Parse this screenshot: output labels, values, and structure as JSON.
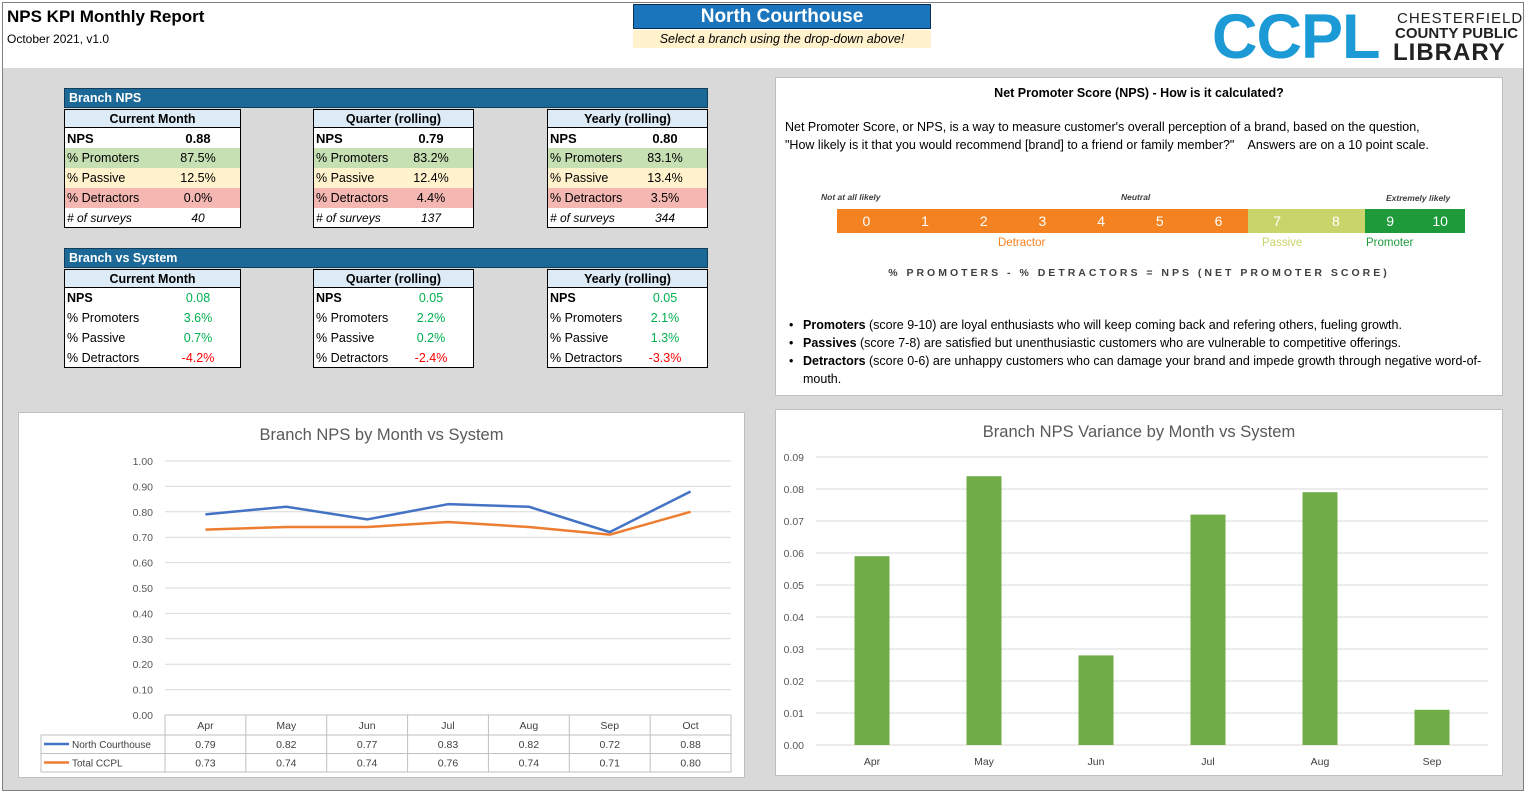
{
  "header": {
    "title": "NPS KPI Monthly Report",
    "subtitle": "October 2021, v1.0",
    "branch_selected": "North Courthouse",
    "branch_hint": "Select a branch using the drop-down above!",
    "logo_mark": "CCPL",
    "logo_line1": "CHESTERFIELD",
    "logo_line2": "COUNTY PUBLIC",
    "logo_line3": "LIBRARY"
  },
  "branch_nps": {
    "section_title": "Branch NPS",
    "tables": [
      {
        "header": "Current Month",
        "nps_label": "NPS",
        "nps": "0.88",
        "promoters_label": "% Promoters",
        "promoters": "87.5%",
        "passive_label": "% Passive",
        "passive": "12.5%",
        "detractors_label": "% Detractors",
        "detractors": "0.0%",
        "surveys_label": "# of surveys",
        "surveys": "40"
      },
      {
        "header": "Quarter (rolling)",
        "nps_label": "NPS",
        "nps": "0.79",
        "promoters_label": "% Promoters",
        "promoters": "83.2%",
        "passive_label": "% Passive",
        "passive": "12.4%",
        "detractors_label": "% Detractors",
        "detractors": "4.4%",
        "surveys_label": "# of surveys",
        "surveys": "137"
      },
      {
        "header": "Yearly (rolling)",
        "nps_label": "NPS",
        "nps": "0.80",
        "promoters_label": "% Promoters",
        "promoters": "83.1%",
        "passive_label": "% Passive",
        "passive": "13.4%",
        "detractors_label": "% Detractors",
        "detractors": "3.5%",
        "surveys_label": "# of surveys",
        "surveys": "344"
      }
    ]
  },
  "branch_vs_system": {
    "section_title": "Branch vs System",
    "tables": [
      {
        "header": "Current Month",
        "nps_label": "NPS",
        "nps": "0.08",
        "promoters_label": "% Promoters",
        "promoters": "3.6%",
        "passive_label": "% Passive",
        "passive": "0.7%",
        "detractors_label": "% Detractors",
        "detractors": "-4.2%"
      },
      {
        "header": "Quarter (rolling)",
        "nps_label": "NPS",
        "nps": "0.05",
        "promoters_label": "% Promoters",
        "promoters": "2.2%",
        "passive_label": "% Passive",
        "passive": "0.2%",
        "detractors_label": "% Detractors",
        "detractors": "-2.4%"
      },
      {
        "header": "Yearly (rolling)",
        "nps_label": "NPS",
        "nps": "0.05",
        "promoters_label": "% Promoters",
        "promoters": "2.1%",
        "passive_label": "% Passive",
        "passive": "1.3%",
        "detractors_label": "% Detractors",
        "detractors": "-3.3%"
      }
    ]
  },
  "explainer": {
    "title": "Net Promoter Score (NPS) - How is it calculated?",
    "line1": "Net Promoter Score, or NPS, is a way to measure customer's overall perception of a brand, based on the question,",
    "line2": "\"How likely is it that you would recommend [brand] to a friend or family member?\"    Answers are on a 10 point scale.",
    "scale_low": "Not at all likely",
    "scale_mid": "Neutral",
    "scale_high": "Extremely likely",
    "scale_values": [
      "0",
      "1",
      "2",
      "3",
      "4",
      "5",
      "6",
      "7",
      "8",
      "9",
      "10"
    ],
    "detractor_label": "Detractor",
    "passive_label": "Passive",
    "promoter_label": "Promoter",
    "formula": "% PROMOTERS - % DETRACTORS = NPS (NET PROMOTER SCORE)",
    "bullets": [
      {
        "term": "Promoters",
        "text": " (score 9-10) are loyal enthusiasts who will keep coming back and refering others, fueling growth."
      },
      {
        "term": "Passives",
        "text": " (score 7-8) are satisfied but unenthusiastic customers who are vulnerable to competitive offerings."
      },
      {
        "term": "Detractors",
        "text": " (score 0-6) are unhappy customers who can damage your brand and impede growth through negative word-of-mouth."
      }
    ]
  },
  "colors": {
    "section_bar": "#1c6896",
    "north_courthouse": "#4472c4",
    "total_ccpl": "#ed7d31",
    "variance_bar": "#70ad47",
    "detractor": "#f58220",
    "passive": "#c9d46b",
    "promoter": "#1f9a3b"
  },
  "chart_data": [
    {
      "type": "line",
      "title": "Branch NPS by Month vs System",
      "categories": [
        "Apr",
        "May",
        "Jun",
        "Jul",
        "Aug",
        "Sep",
        "Oct"
      ],
      "series": [
        {
          "name": "North Courthouse",
          "values": [
            0.79,
            0.82,
            0.77,
            0.83,
            0.82,
            0.72,
            0.88
          ],
          "labels": [
            "0.79",
            "0.82",
            "0.77",
            "0.83",
            "0.82",
            "0.72",
            "0.88"
          ]
        },
        {
          "name": "Total CCPL",
          "values": [
            0.73,
            0.74,
            0.74,
            0.76,
            0.74,
            0.71,
            0.8
          ],
          "labels": [
            "0.73",
            "0.74",
            "0.74",
            "0.76",
            "0.74",
            "0.71",
            "0.80"
          ]
        }
      ],
      "ylim": [
        0,
        1
      ],
      "yticks": [
        "0.00",
        "0.10",
        "0.20",
        "0.30",
        "0.40",
        "0.50",
        "0.60",
        "0.70",
        "0.80",
        "0.90",
        "1.00"
      ],
      "grid": true,
      "legend": "data table below"
    },
    {
      "type": "bar",
      "title": "Branch NPS Variance by Month vs System",
      "categories": [
        "Apr",
        "May",
        "Jun",
        "Jul",
        "Aug",
        "Sep"
      ],
      "values": [
        0.059,
        0.084,
        0.028,
        0.072,
        0.079,
        0.011
      ],
      "ylim": [
        0,
        0.09
      ],
      "yticks": [
        "0.00",
        "0.01",
        "0.02",
        "0.03",
        "0.04",
        "0.05",
        "0.06",
        "0.07",
        "0.08",
        "0.09"
      ],
      "grid": true
    }
  ]
}
